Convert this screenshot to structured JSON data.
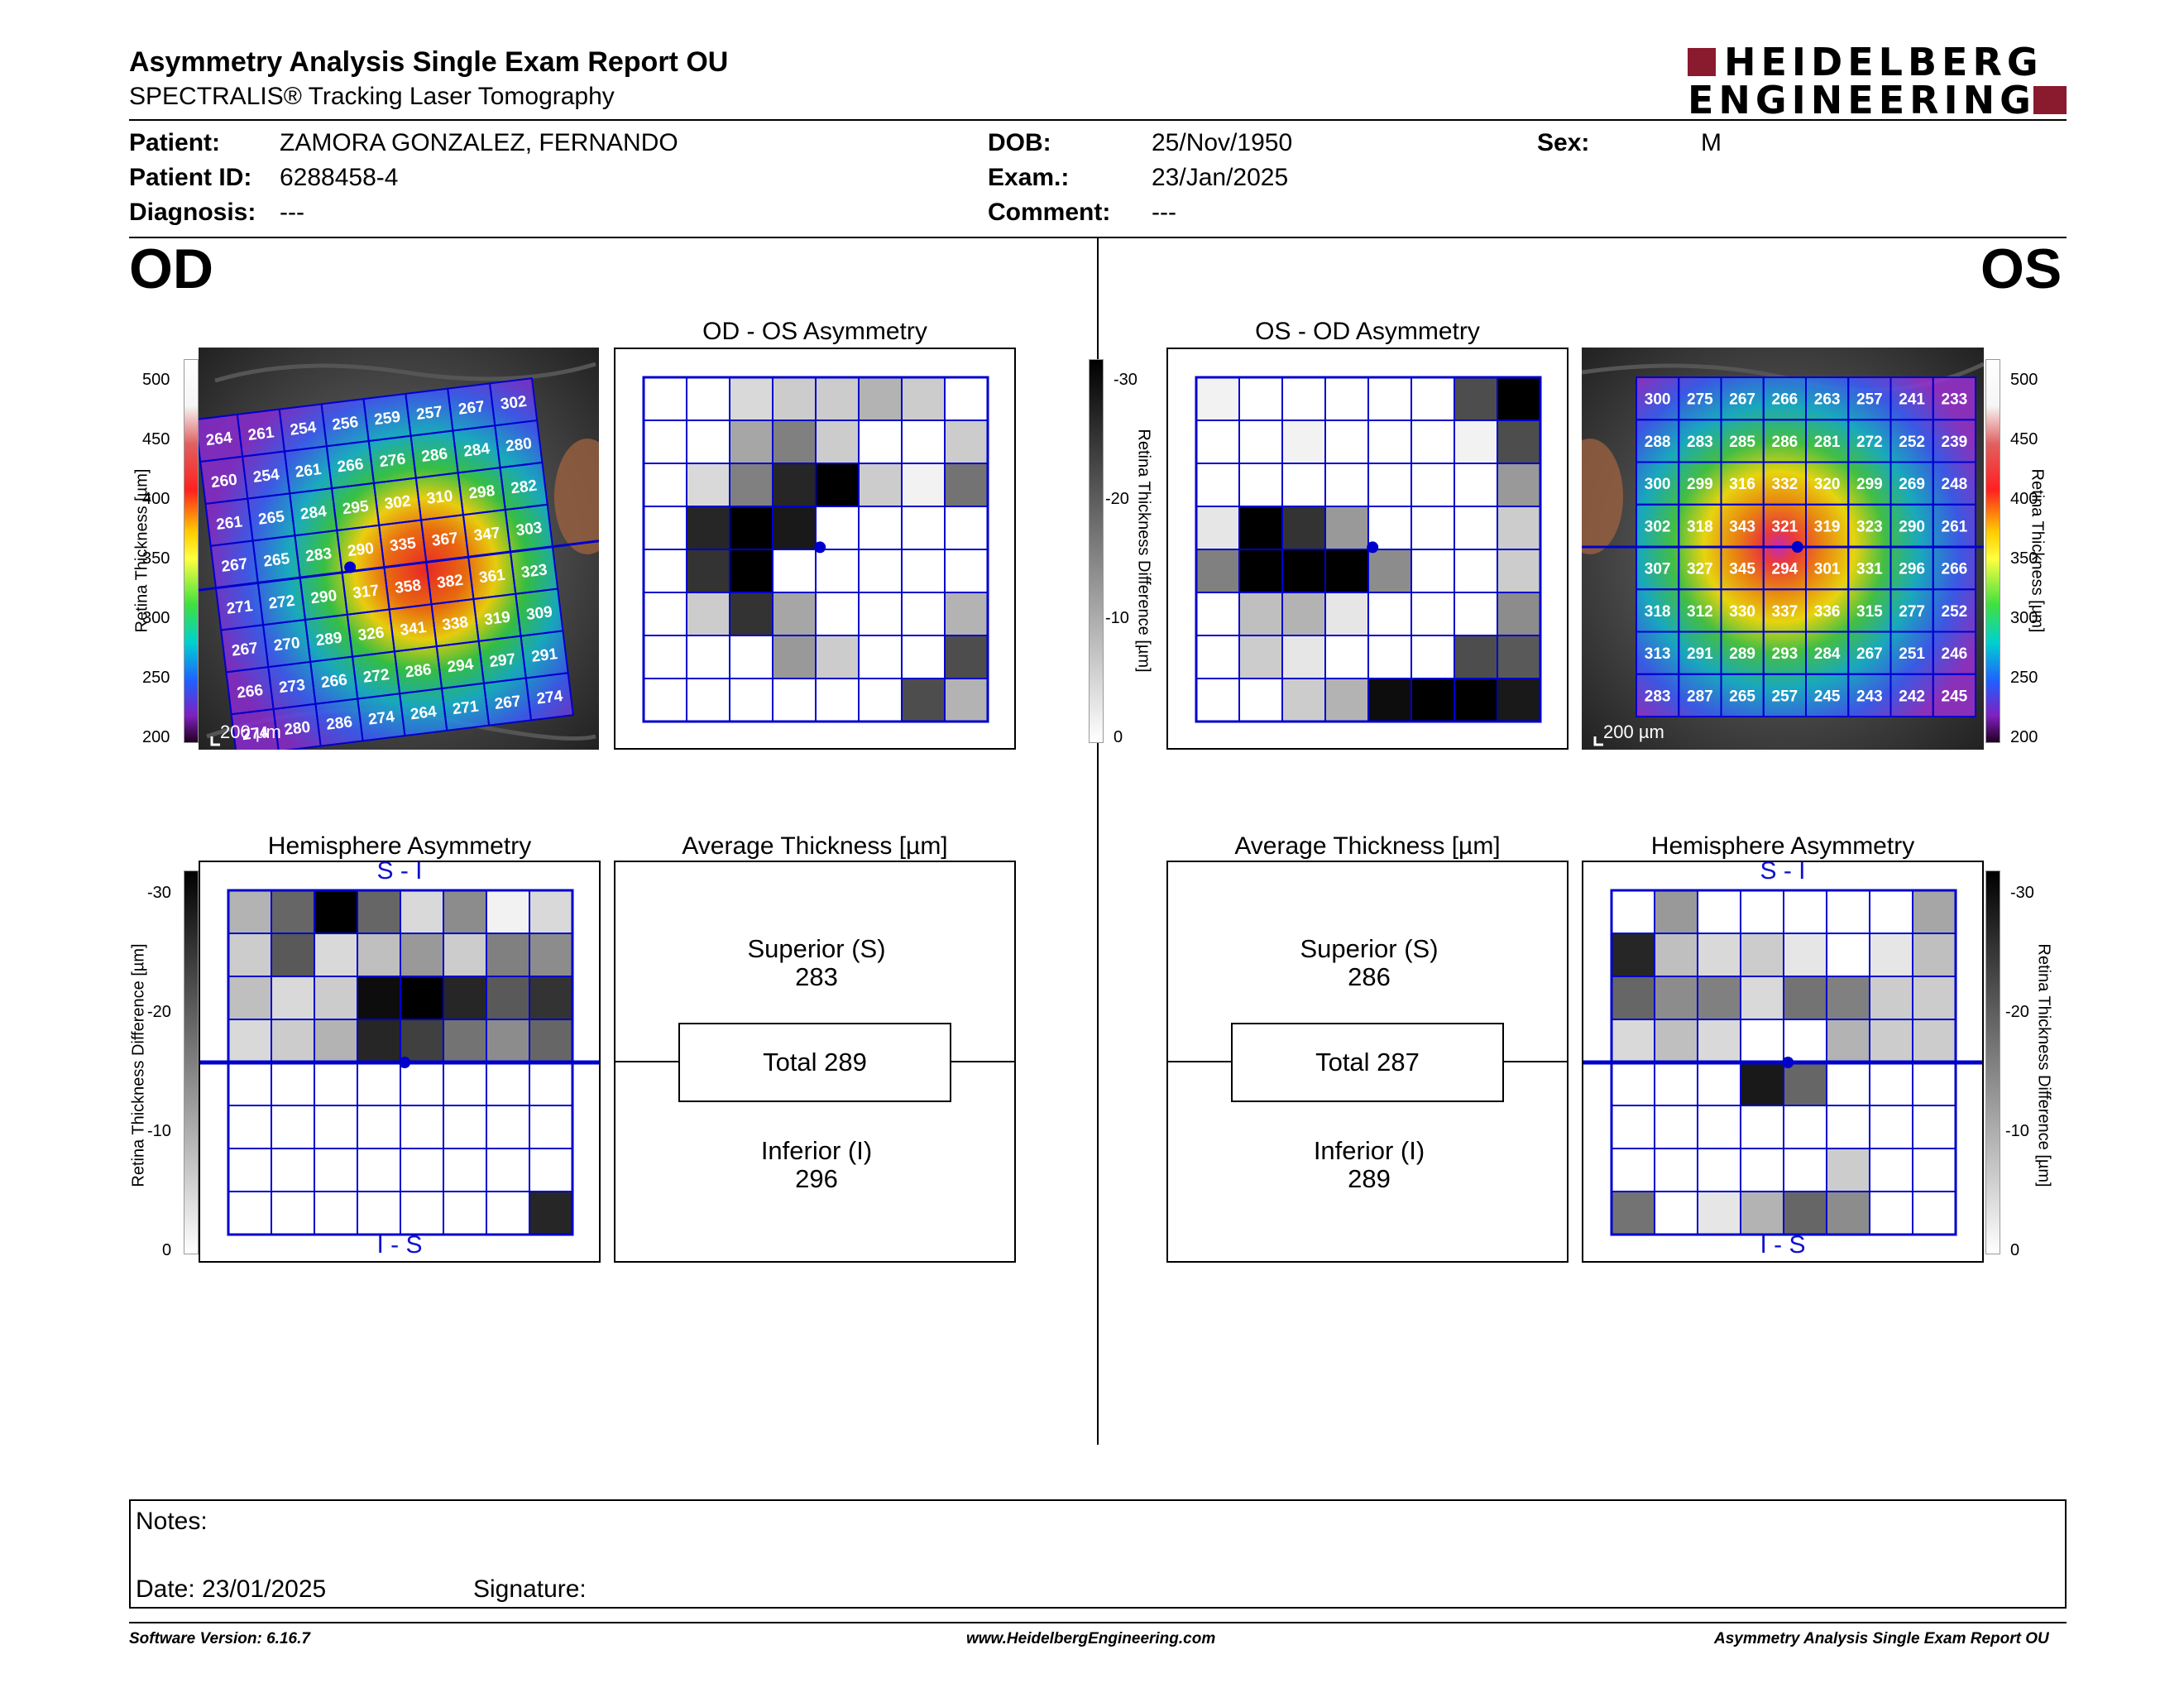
{
  "header": {
    "title": "Asymmetry Analysis Single Exam Report OU",
    "subtitle": "SPECTRALIS® Tracking Laser Tomography",
    "logo_line1": "HEIDELBERG",
    "logo_line2": "ENGINEERING"
  },
  "patient": {
    "patient_label": "Patient:",
    "patient_value": "ZAMORA GONZALEZ, FERNANDO",
    "id_label": "Patient ID:",
    "id_value": "6288458-4",
    "diag_label": "Diagnosis:",
    "diag_value": "---",
    "dob_label": "DOB:",
    "dob_value": "25/Nov/1950",
    "exam_label": "Exam.:",
    "exam_value": "23/Jan/2025",
    "comment_label": "Comment:",
    "comment_value": "---",
    "sex_label": "Sex:",
    "sex_value": "M"
  },
  "od": {
    "eye_label": "OD",
    "asym_title": "OD - OS Asymmetry",
    "hemi_title": "Hemisphere Asymmetry",
    "avg_title": "Average Thickness [µm]",
    "superior_label": "Superior (S)",
    "superior_value": "283",
    "total_label": "Total 289",
    "inferior_label": "Inferior (I)",
    "inferior_value": "296",
    "scale_label": "200 µm",
    "thickness": [
      [
        264,
        261,
        254,
        256,
        259,
        257,
        267,
        302
      ],
      [
        260,
        254,
        261,
        266,
        276,
        286,
        284,
        280
      ],
      [
        261,
        265,
        284,
        295,
        302,
        310,
        298,
        282
      ],
      [
        267,
        265,
        283,
        290,
        335,
        367,
        347,
        303
      ],
      [
        271,
        272,
        290,
        317,
        358,
        382,
        361,
        323
      ],
      [
        267,
        270,
        289,
        326,
        341,
        338,
        319,
        309
      ],
      [
        266,
        273,
        266,
        272,
        286,
        294,
        297,
        291
      ],
      [
        274,
        280,
        286,
        274,
        264,
        271,
        267,
        274
      ]
    ],
    "asym_grid": [
      [
        0,
        0,
        0.15,
        0.2,
        0.2,
        0.3,
        0.2,
        0
      ],
      [
        0,
        0,
        0.35,
        0.5,
        0.2,
        0,
        0,
        0.2
      ],
      [
        0,
        0.15,
        0.5,
        0.85,
        1,
        0.2,
        0.05,
        0.55
      ],
      [
        0,
        0.85,
        1,
        0.9,
        0,
        0,
        0,
        0
      ],
      [
        0,
        0.8,
        1,
        0,
        0,
        0,
        0,
        0
      ],
      [
        0,
        0.2,
        0.8,
        0.35,
        0,
        0,
        0,
        0.3
      ],
      [
        0,
        0,
        0,
        0.4,
        0.2,
        0,
        0,
        0.7
      ],
      [
        0,
        0,
        0,
        0,
        0,
        0,
        0.7,
        0.3
      ]
    ],
    "hemi_grid": [
      [
        0.3,
        0.6,
        1,
        0.6,
        0.15,
        0.45,
        0.05,
        0.15
      ],
      [
        0.2,
        0.65,
        0.15,
        0.25,
        0.4,
        0.2,
        0.5,
        0.45
      ],
      [
        0.25,
        0.15,
        0.2,
        0.95,
        1,
        0.85,
        0.65,
        0.8
      ],
      [
        0.15,
        0.2,
        0.3,
        0.85,
        0.75,
        0.55,
        0.45,
        0.6
      ],
      [
        0,
        0,
        0,
        0,
        0,
        0,
        0,
        0
      ],
      [
        0,
        0,
        0,
        0,
        0,
        0,
        0,
        0
      ],
      [
        0,
        0,
        0,
        0,
        0,
        0,
        0,
        0
      ],
      [
        0,
        0,
        0,
        0,
        0,
        0,
        0,
        0.85
      ]
    ]
  },
  "os": {
    "eye_label": "OS",
    "asym_title": "OS - OD Asymmetry",
    "hemi_title": "Hemisphere Asymmetry",
    "avg_title": "Average Thickness [µm]",
    "superior_label": "Superior (S)",
    "superior_value": "286",
    "total_label": "Total 287",
    "inferior_label": "Inferior (I)",
    "inferior_value": "289",
    "scale_label": "200 µm",
    "thickness": [
      [
        300,
        275,
        267,
        266,
        263,
        257,
        241,
        233
      ],
      [
        288,
        283,
        285,
        286,
        281,
        272,
        252,
        239
      ],
      [
        300,
        299,
        316,
        332,
        320,
        299,
        269,
        248
      ],
      [
        302,
        318,
        343,
        321,
        319,
        323,
        290,
        261
      ],
      [
        307,
        327,
        345,
        294,
        301,
        331,
        296,
        266
      ],
      [
        318,
        312,
        330,
        337,
        336,
        315,
        277,
        252
      ],
      [
        313,
        291,
        289,
        293,
        284,
        267,
        251,
        246
      ],
      [
        283,
        287,
        265,
        257,
        245,
        243,
        242,
        245
      ]
    ],
    "asym_grid": [
      [
        0.05,
        0,
        0,
        0,
        0,
        0,
        0.7,
        1
      ],
      [
        0,
        0,
        0.05,
        0,
        0,
        0,
        0.05,
        0.7
      ],
      [
        0,
        0,
        0,
        0,
        0,
        0,
        0,
        0.4
      ],
      [
        0.1,
        1,
        0.8,
        0.4,
        0,
        0,
        0,
        0.2
      ],
      [
        0.5,
        1,
        1,
        1,
        0.45,
        0,
        0,
        0.2
      ],
      [
        0,
        0.25,
        0.3,
        0.1,
        0,
        0,
        0,
        0.45
      ],
      [
        0,
        0.2,
        0.1,
        0,
        0,
        0,
        0.7,
        0.65
      ],
      [
        0,
        0,
        0.2,
        0.3,
        0.95,
        1,
        1,
        0.9
      ]
    ],
    "hemi_grid": [
      [
        0,
        0.4,
        0,
        0,
        0,
        0,
        0,
        0.35
      ],
      [
        0.85,
        0.25,
        0.15,
        0.2,
        0.1,
        0,
        0.1,
        0.25
      ],
      [
        0.6,
        0.45,
        0.5,
        0.15,
        0.55,
        0.5,
        0.2,
        0.2
      ],
      [
        0.15,
        0.25,
        0.15,
        0,
        0,
        0.3,
        0.2,
        0.2
      ],
      [
        0,
        0,
        0,
        0.9,
        0.6,
        0,
        0,
        0
      ],
      [
        0,
        0,
        0,
        0,
        0,
        0,
        0,
        0
      ],
      [
        0,
        0,
        0,
        0,
        0,
        0.2,
        0,
        0
      ],
      [
        0.55,
        0,
        0.1,
        0.3,
        0.6,
        0.45,
        0,
        0
      ]
    ]
  },
  "scales": {
    "thickness_ticks": [
      "500",
      "450",
      "400",
      "350",
      "300",
      "250",
      "200"
    ],
    "thickness_label": "Retina Thickness [µm]",
    "diff_ticks": [
      "-30",
      "-20",
      "-10",
      "0"
    ],
    "diff_label": "Retina Thickness Difference [µm]",
    "si_label": "S - I",
    "is_label": "I - S"
  },
  "notes": {
    "notes_label": "Notes:",
    "date_label": "Date: 23/01/2025",
    "signature_label": "Signature:"
  },
  "footer": {
    "software": "Software Version: 6.16.7",
    "website": "www.HeidelbergEngineering.com",
    "report": "Asymmetry Analysis Single Exam Report OU"
  },
  "colors": {
    "grid_blue": "#0000cc",
    "logo_red": "#8a1a2e"
  }
}
